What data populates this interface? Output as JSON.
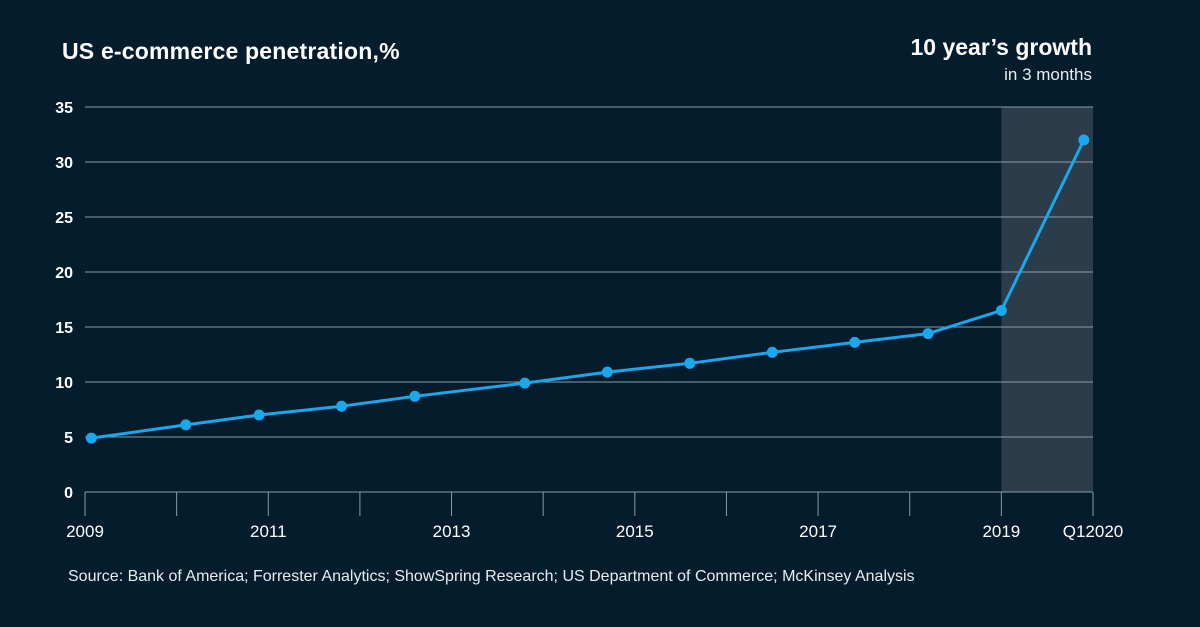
{
  "chart_data": {
    "type": "line",
    "title": "US e-commerce penetration,%",
    "callout": {
      "title": "10 year’s growth",
      "subtitle": "in 3 months"
    },
    "ylim": [
      0,
      35
    ],
    "yticks": [
      0,
      5,
      10,
      15,
      20,
      25,
      30,
      35
    ],
    "x_tick_labels": [
      {
        "label": "2009",
        "x": 0
      },
      {
        "label": "2011",
        "x": 2
      },
      {
        "label": "2013",
        "x": 4
      },
      {
        "label": "2015",
        "x": 6
      },
      {
        "label": "2017",
        "x": 8
      },
      {
        "label": "2019",
        "x": 10
      },
      {
        "label": "Q12020",
        "x": 11
      }
    ],
    "xlim": [
      0,
      11
    ],
    "grid": true,
    "highlight_range": [
      10,
      11
    ],
    "series": [
      {
        "x": [
          0.07,
          1.1,
          1.9,
          2.8,
          3.6,
          4.8,
          5.7,
          6.6,
          7.5,
          8.4,
          9.2,
          10.0,
          10.9
        ],
        "values": [
          4.9,
          6.1,
          7.0,
          7.8,
          8.7,
          9.9,
          10.9,
          11.7,
          12.7,
          13.6,
          14.4,
          16.5,
          32.0
        ],
        "color": "#1aa7ec"
      }
    ],
    "source": "Source: Bank of America; Forrester Analytics; ShowSpring Research; US Department of Commerce; McKinsey Analysis"
  }
}
